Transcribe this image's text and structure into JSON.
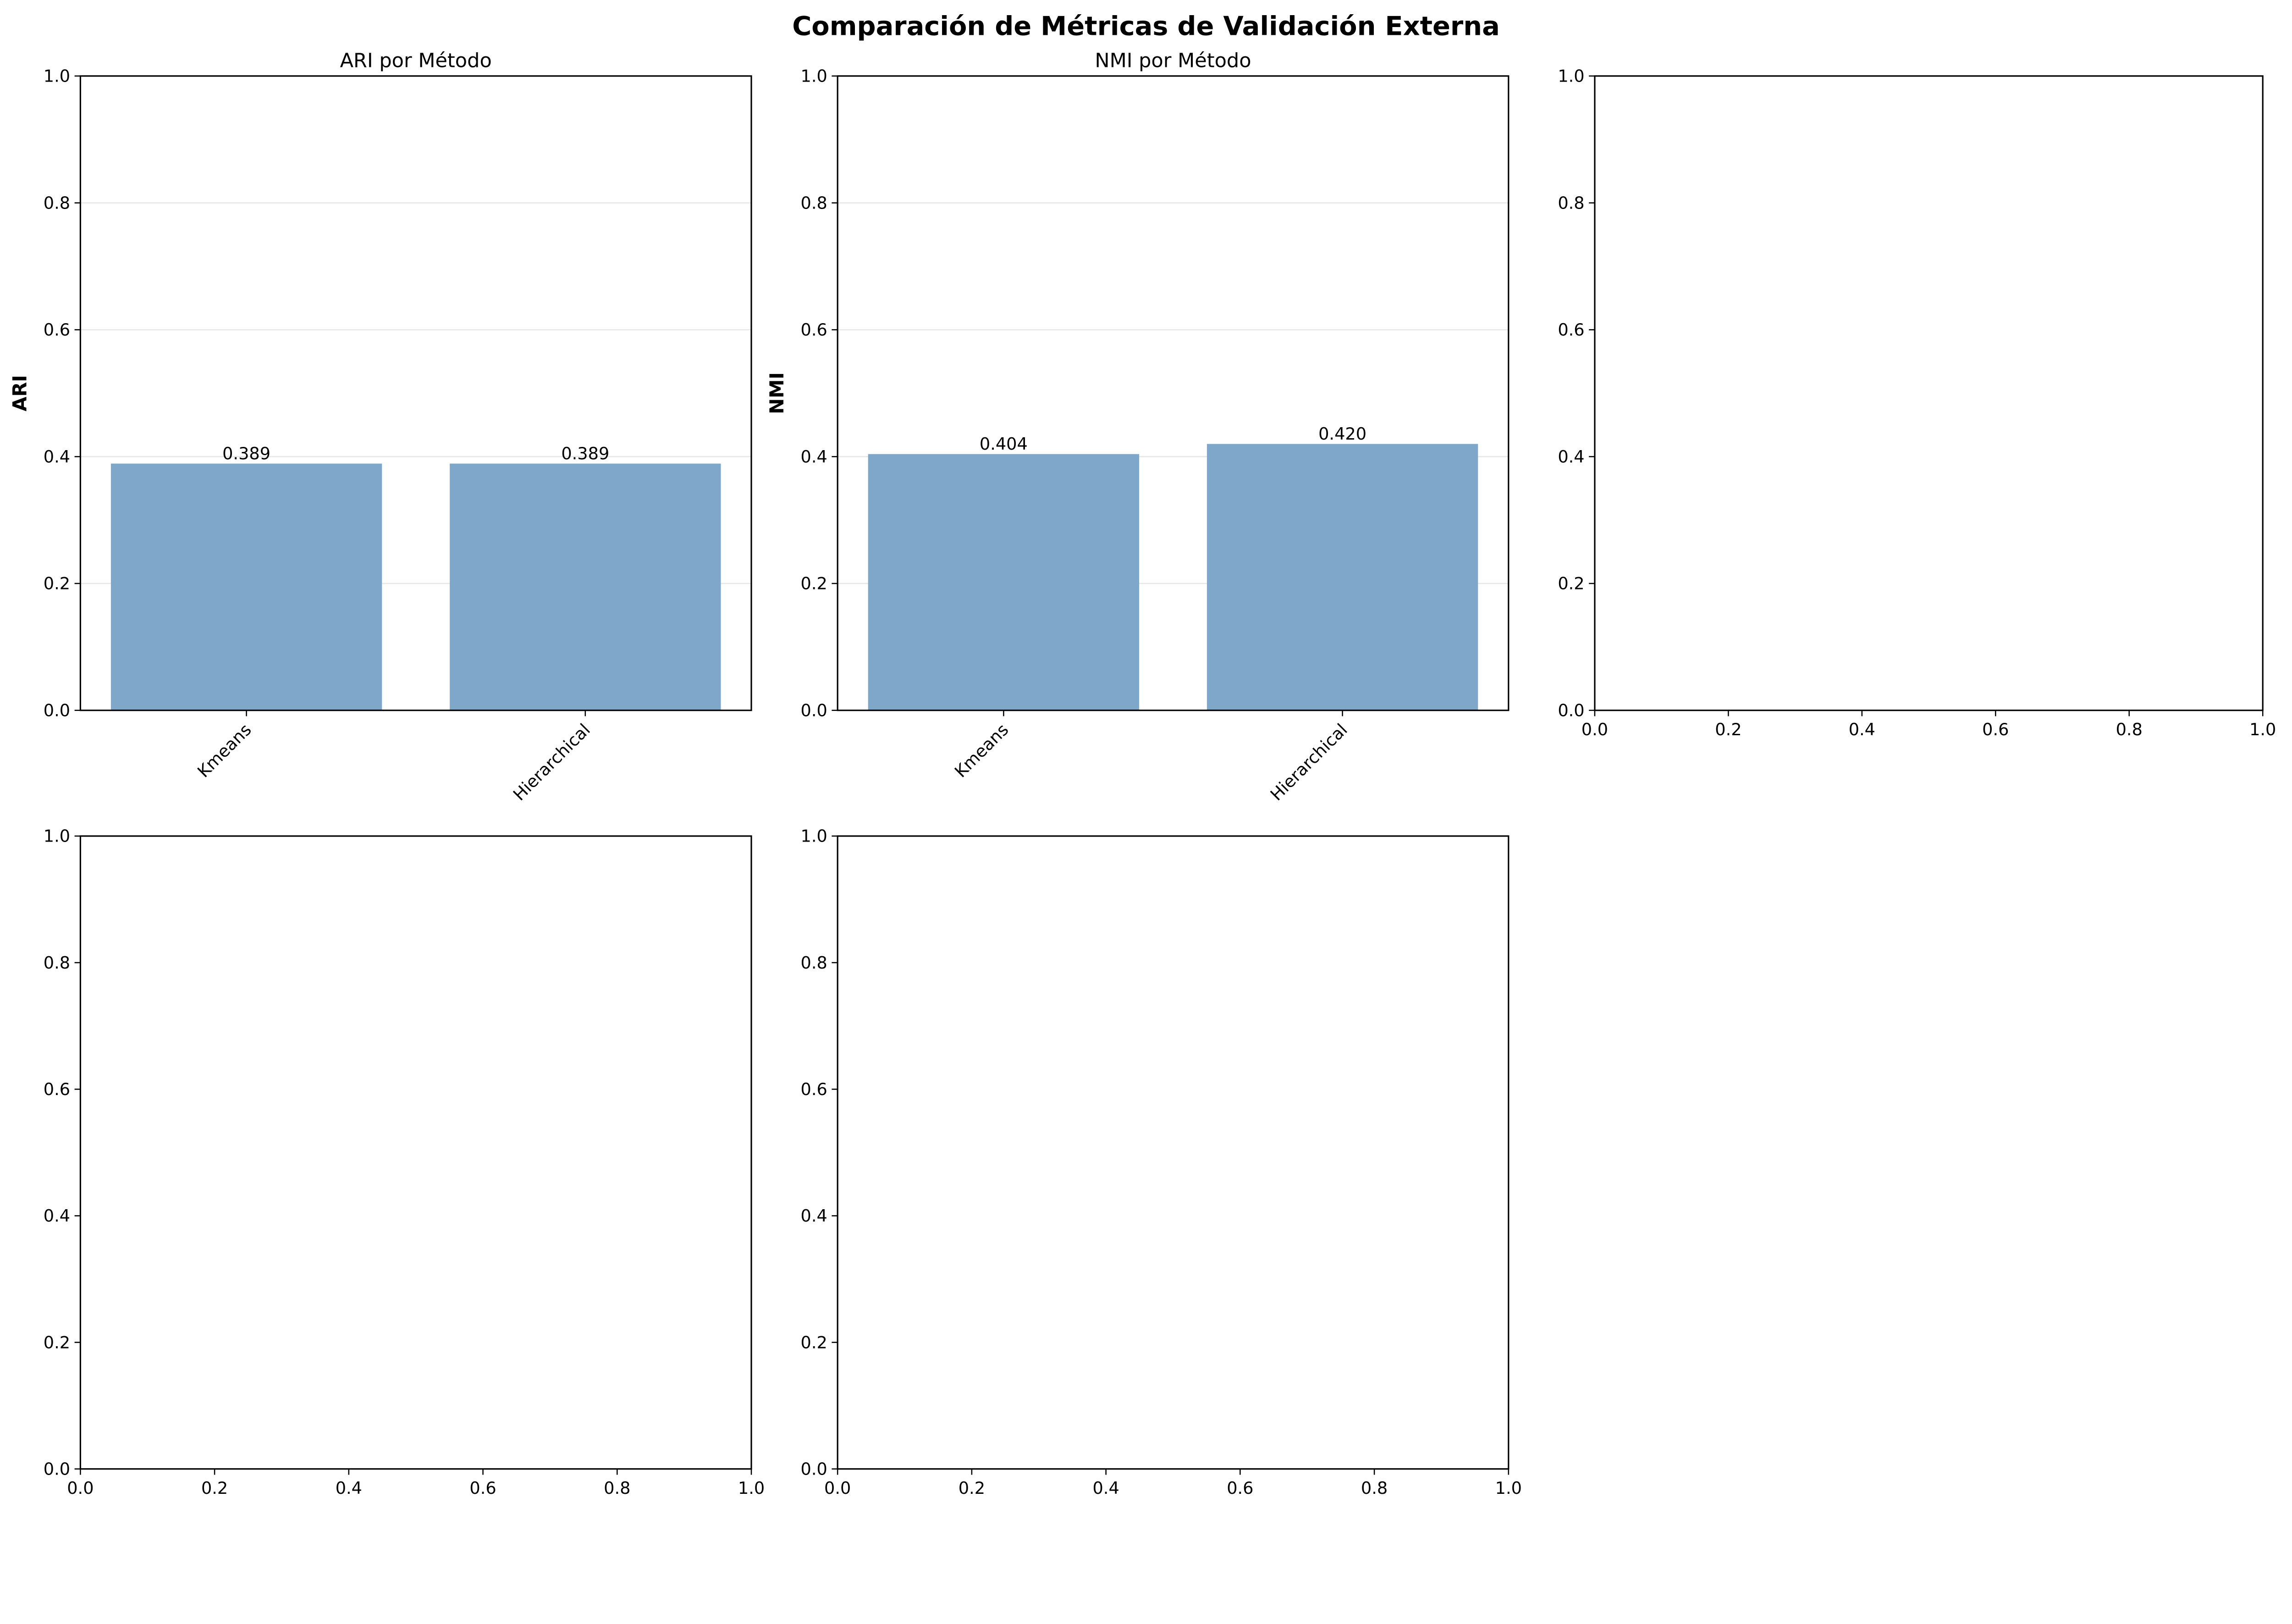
{
  "title": "Comparación de Métricas de Validación Externa",
  "bar_color": "#7ea7ca",
  "chart_data": [
    {
      "type": "bar",
      "title": "ARI por Método",
      "xlabel": "",
      "ylabel": "ARI",
      "categories": [
        "Kmeans",
        "Hierarchical"
      ],
      "values": [
        0.389,
        0.389
      ],
      "value_labels": [
        "0.389",
        "0.389"
      ],
      "ylim": [
        0,
        1
      ],
      "yticks": [
        "0.0",
        "0.2",
        "0.4",
        "0.6",
        "0.8",
        "1.0"
      ],
      "grid": "y"
    },
    {
      "type": "bar",
      "title": "NMI por Método",
      "xlabel": "",
      "ylabel": "NMI",
      "categories": [
        "Kmeans",
        "Hierarchical"
      ],
      "values": [
        0.404,
        0.42
      ],
      "value_labels": [
        "0.404",
        "0.420"
      ],
      "ylim": [
        0,
        1
      ],
      "yticks": [
        "0.0",
        "0.2",
        "0.4",
        "0.6",
        "0.8",
        "1.0"
      ],
      "grid": "y"
    },
    {
      "type": "empty",
      "title": "",
      "xlim": [
        0,
        1
      ],
      "ylim": [
        0,
        1
      ],
      "xticks": [
        "0.0",
        "0.2",
        "0.4",
        "0.6",
        "0.8",
        "1.0"
      ],
      "yticks": [
        "0.0",
        "0.2",
        "0.4",
        "0.6",
        "0.8",
        "1.0"
      ]
    },
    {
      "type": "empty",
      "title": "",
      "xlim": [
        0,
        1
      ],
      "ylim": [
        0,
        1
      ],
      "xticks": [
        "0.0",
        "0.2",
        "0.4",
        "0.6",
        "0.8",
        "1.0"
      ],
      "yticks": [
        "0.0",
        "0.2",
        "0.4",
        "0.6",
        "0.8",
        "1.0"
      ]
    },
    {
      "type": "empty",
      "title": "",
      "xlim": [
        0,
        1
      ],
      "ylim": [
        0,
        1
      ],
      "xticks": [
        "0.0",
        "0.2",
        "0.4",
        "0.6",
        "0.8",
        "1.0"
      ],
      "yticks": [
        "0.0",
        "0.2",
        "0.4",
        "0.6",
        "0.8",
        "1.0"
      ]
    }
  ]
}
